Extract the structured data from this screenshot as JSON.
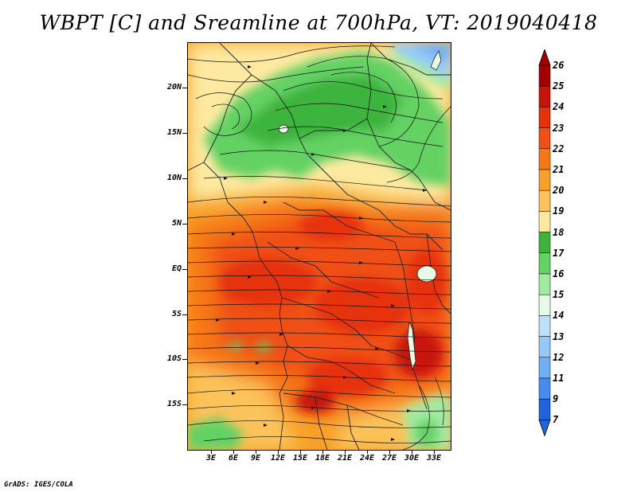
{
  "title": "WBPT [C] and Sreamline at 700hPa, VT: 2019040418",
  "credit": "GrADS: IGES/COLA",
  "map": {
    "y_axis_labels": [
      "20N",
      "15N",
      "10N",
      "5N",
      "EQ",
      "5S",
      "10S",
      "15S"
    ],
    "x_axis_labels": [
      "3E",
      "6E",
      "9E",
      "12E",
      "15E",
      "18E",
      "21E",
      "24E",
      "27E",
      "30E",
      "33E"
    ]
  },
  "colorbar": {
    "labels": [
      "26",
      "25",
      "24",
      "23",
      "22",
      "21",
      "20",
      "19",
      "18",
      "17",
      "16",
      "15",
      "14",
      "13",
      "12",
      "11",
      "9",
      "7"
    ],
    "colors": [
      "#a50000",
      "#c8140a",
      "#e6320a",
      "#f05014",
      "#f57814",
      "#f8a028",
      "#fbc35a",
      "#fdeaa0",
      "#3cb43c",
      "#64d264",
      "#a0eba0",
      "#e6fae6",
      "#bee1fa",
      "#96c8fa",
      "#6eaff5",
      "#468cf0",
      "#1e64dc"
    ],
    "top_color": "#a50000",
    "bottom_color": "#1e64dc"
  }
}
